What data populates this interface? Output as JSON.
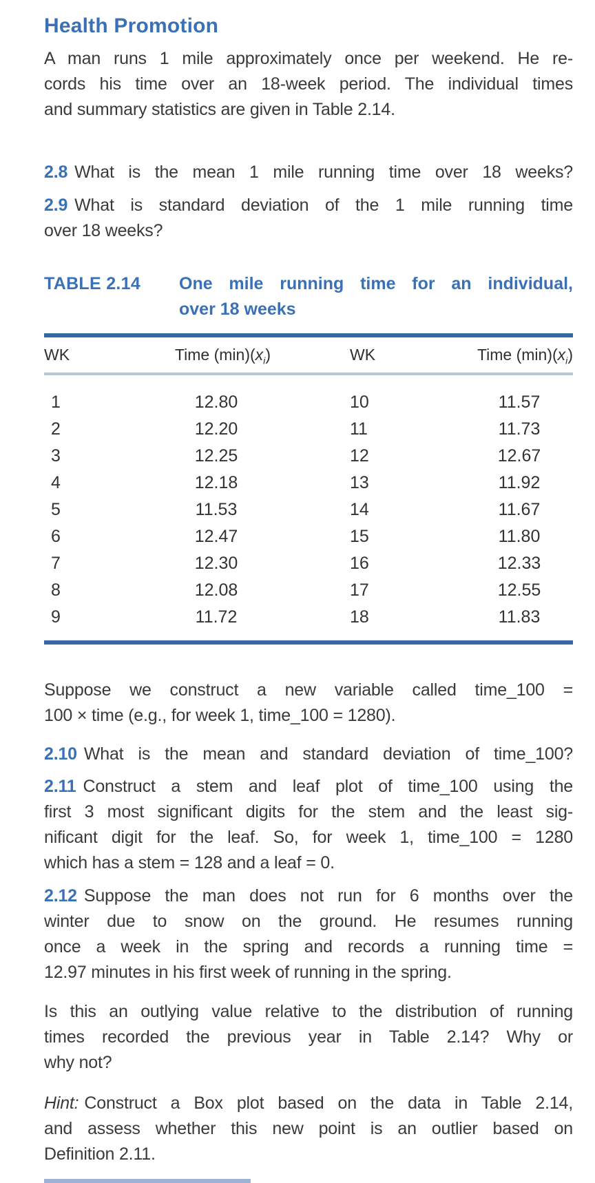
{
  "colors": {
    "accent_blue": "#3a70b5",
    "rule_dark_blue": "#35689f",
    "rule_light_blue": "#b7c4dc",
    "body_text": "#3a3a3c"
  },
  "section": {
    "title": "Health Promotion"
  },
  "intro": {
    "line1": "A man runs 1 mile approximately once per weekend. He re-",
    "line2": "cords his time over an 18-week period. The individual times",
    "line3": "and summary statistics are given in Table 2.14."
  },
  "q28": {
    "number": "2.8",
    "line1": "What is the mean 1 mile running time over 18 weeks?"
  },
  "q29": {
    "number": "2.9",
    "line1": "What is standard deviation of the 1 mile running time",
    "line2": "over 18 weeks?"
  },
  "table": {
    "label": "TABLE 2.14",
    "caption_line1": "One mile running time for an individual,",
    "caption_line2": "over 18 weeks",
    "header": {
      "wk": "WK",
      "time_prefix": "Time (min)(",
      "time_var": "x",
      "time_sub": "i",
      "time_suffix": ")"
    },
    "rows": [
      {
        "wk1": "1",
        "time1": "12.80",
        "wk2": "10",
        "time2": "11.57"
      },
      {
        "wk1": "2",
        "time1": "12.20",
        "wk2": "11",
        "time2": "11.73"
      },
      {
        "wk1": "3",
        "time1": "12.25",
        "wk2": "12",
        "time2": "12.67"
      },
      {
        "wk1": "4",
        "time1": "12.18",
        "wk2": "13",
        "time2": "11.92"
      },
      {
        "wk1": "5",
        "time1": "11.53",
        "wk2": "14",
        "time2": "11.67"
      },
      {
        "wk1": "6",
        "time1": "12.47",
        "wk2": "15",
        "time2": "11.80"
      },
      {
        "wk1": "7",
        "time1": "12.30",
        "wk2": "16",
        "time2": "12.33"
      },
      {
        "wk1": "8",
        "time1": "12.08",
        "wk2": "17",
        "time2": "12.55"
      },
      {
        "wk1": "9",
        "time1": "11.72",
        "wk2": "18",
        "time2": "11.83"
      }
    ]
  },
  "p_time100": {
    "line1": "Suppose we construct a new variable called time_100 =",
    "line2": "100 × time (e.g., for week 1, time_100 = 1280)."
  },
  "q210": {
    "number": "2.10",
    "line1": "What is the mean and standard deviation of time_100?"
  },
  "q211": {
    "number": "2.11",
    "line1": "Construct a stem and leaf plot of time_100 using the",
    "line2": "first 3 most significant digits for the stem and the least sig-",
    "line3": "nificant digit for the leaf. So, for week 1, time_100 = 1280",
    "line4": "which has a stem = 128 and a leaf = 0."
  },
  "q212": {
    "number": "2.12",
    "line1": "Suppose the man does not run for 6 months over the",
    "line2": "winter due to snow on the ground. He resumes running",
    "line3": "once a week in the spring and records a running time =",
    "line4": "12.97 minutes in his first week of running in the spring."
  },
  "p_outlier": {
    "line1": "Is this an outlying value relative to the distribution of running",
    "line2": "times recorded the previous year in Table 2.14? Why or",
    "line3": "why not?"
  },
  "p_hint": {
    "label": "Hint:",
    "line1": "Construct a Box plot based on the data in Table 2.14,",
    "line2": "and assess whether this new point is an outlier based on",
    "line3": "Definition 2.11."
  }
}
